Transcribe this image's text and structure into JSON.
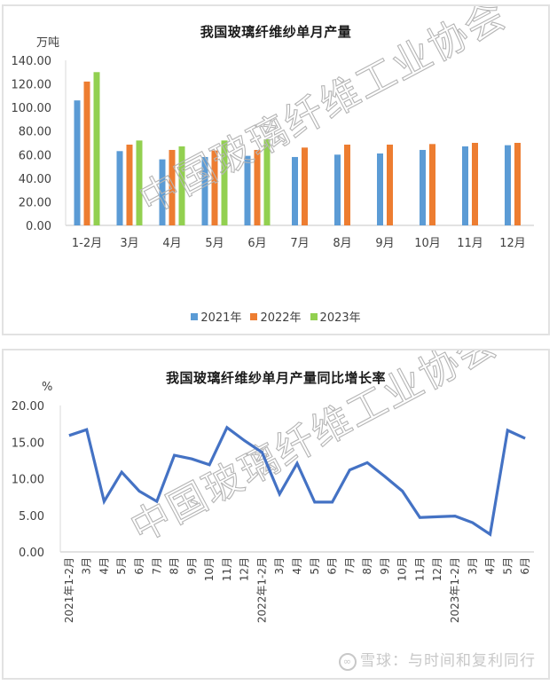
{
  "colors": {
    "y2021": "#5b9bd5",
    "y2022": "#ed7d31",
    "y2023": "#92d050",
    "line": "#4472c4",
    "watermark": "#b5b5b5",
    "axis": "#d9d9d9"
  },
  "watermark": "中国玻璃纤维工业协会",
  "footer": {
    "logo_icon": "xueqiu-logo-icon",
    "text": "雪球：与时间和复利同行"
  },
  "chart_data": [
    {
      "type": "bar",
      "title": "我国玻璃纤维纱单月产量",
      "ylabel": "万吨",
      "xlabel": "",
      "ylim": [
        0,
        140
      ],
      "yticks": [
        "0.00",
        "20.00",
        "40.00",
        "60.00",
        "80.00",
        "100.00",
        "120.00",
        "140.00"
      ],
      "grid": false,
      "legend_position": "bottom",
      "categories": [
        "1-2月",
        "3月",
        "4月",
        "5月",
        "6月",
        "7月",
        "8月",
        "9月",
        "10月",
        "11月",
        "12月"
      ],
      "series": [
        {
          "name": "2021年",
          "values": [
            106,
            63,
            56,
            58,
            59,
            58,
            60,
            61,
            64,
            67,
            68
          ]
        },
        {
          "name": "2022年",
          "values": [
            122,
            68.5,
            64,
            63.5,
            64,
            66,
            68.5,
            68.5,
            69,
            70,
            70
          ]
        },
        {
          "name": "2023年",
          "values": [
            130,
            72,
            67,
            72,
            73,
            null,
            null,
            null,
            null,
            null,
            null
          ]
        }
      ]
    },
    {
      "type": "line",
      "title": "我国玻璃纤维纱单月产量同比增长率",
      "ylabel": "%",
      "xlabel": "",
      "ylim": [
        0,
        20
      ],
      "yticks": [
        "0.00",
        "5.00",
        "10.00",
        "15.00",
        "20.00"
      ],
      "grid": false,
      "x": [
        "2021年1-2月",
        "3月",
        "4月",
        "5月",
        "6月",
        "7月",
        "8月",
        "9月",
        "10月",
        "11月",
        "12月",
        "2022年1-2月",
        "3月",
        "4月",
        "5月",
        "6月",
        "7月",
        "8月",
        "9月",
        "10月",
        "11月",
        "12月",
        "2023年1-2月",
        "3月",
        "4月",
        "5月",
        "6月"
      ],
      "series": [
        {
          "name": "同比增长率",
          "values": [
            15.9,
            16.7,
            6.9,
            10.9,
            8.3,
            6.9,
            13.2,
            12.7,
            11.9,
            17.0,
            15.2,
            13.6,
            7.9,
            12.1,
            6.8,
            6.8,
            11.2,
            12.2,
            10.3,
            8.3,
            4.7,
            4.8,
            4.9,
            4.0,
            2.4,
            16.6,
            15.5
          ]
        }
      ]
    }
  ]
}
